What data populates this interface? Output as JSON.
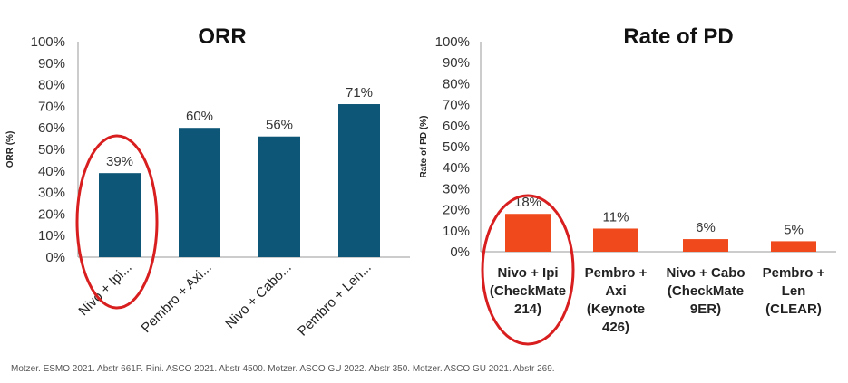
{
  "chart_data": [
    {
      "type": "bar",
      "title": "ORR",
      "ylabel": "ORR (%)",
      "ylim": [
        0,
        100
      ],
      "y_ticks": [
        "0%",
        "10%",
        "20%",
        "30%",
        "40%",
        "50%",
        "60%",
        "70%",
        "80%",
        "90%",
        "100%"
      ],
      "categories": [
        "Nivo + Ipi...",
        "Pembro + Axi...",
        "Nivo + Cabo...",
        "Pembro + Len..."
      ],
      "values": [
        39,
        60,
        56,
        71
      ],
      "data_labels": [
        "39%",
        "60%",
        "56%",
        "71%"
      ],
      "bar_color": "#0e5677",
      "highlight_index": 0,
      "highlight_color": "#d81e1e"
    },
    {
      "type": "bar",
      "title": "Rate of PD",
      "ylabel": "Rate of PD (%)",
      "ylim": [
        0,
        100
      ],
      "y_ticks": [
        "0%",
        "10%",
        "20%",
        "30%",
        "40%",
        "50%",
        "60%",
        "70%",
        "80%",
        "90%",
        "100%"
      ],
      "categories": [
        [
          "Nivo + Ipi",
          "(CheckMate",
          "214)"
        ],
        [
          "Pembro +",
          "Axi",
          "(Keynote",
          "426)"
        ],
        [
          "Nivo + Cabo",
          "(CheckMate",
          "9ER)"
        ],
        [
          "Pembro +",
          "Len",
          "(CLEAR)"
        ]
      ],
      "values": [
        18,
        11,
        6,
        5
      ],
      "data_labels": [
        "18%",
        "11%",
        "6%",
        "5%"
      ],
      "bar_color": "#f04a1c",
      "highlight_index": 0,
      "highlight_color": "#d81e1e"
    }
  ],
  "footnote": "Motzer. ESMO 2021. Abstr 661P. Rini. ASCO 2021. Abstr 4500.  Motzer. ASCO GU 2022. Abstr 350. Motzer. ASCO GU 2021. Abstr 269."
}
